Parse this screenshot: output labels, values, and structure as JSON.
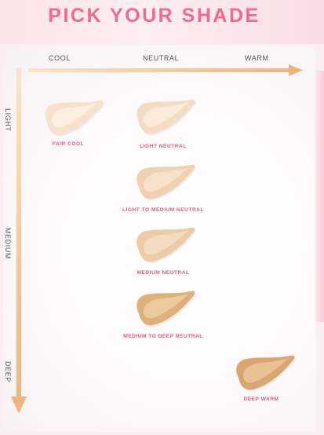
{
  "title": "PICK YOUR SHADE",
  "undertone_axis": {
    "cool": "COOL",
    "neutral": "NEUTRAL",
    "warm": "WARM"
  },
  "depth_axis": {
    "light": "LIGHT",
    "medium": "MEDIUM",
    "deep": "DEEP"
  },
  "shades": [
    {
      "label": "FAIR COOL",
      "color": "#f6e1cc",
      "highlight": "#fdf3e8"
    },
    {
      "label": "LIGHT NEUTRAL",
      "color": "#f4dcc3",
      "highlight": "#fcefe1"
    },
    {
      "label": "LIGHT TO MEDIUM NEUTRAL",
      "color": "#efd0b1",
      "highlight": "#f9e6d2"
    },
    {
      "label": "MEDIUM NEUTRAL",
      "color": "#eccba9",
      "highlight": "#f7e1ca"
    },
    {
      "label": "MEDIUM TO DEEP NEUTRAL",
      "color": "#dfb07a",
      "highlight": "#f1d2ac"
    },
    {
      "label": "DEEP WARM",
      "color": "#d9a66f",
      "highlight": "#eecaa1"
    }
  ],
  "arrow_color": "#f2be8c"
}
